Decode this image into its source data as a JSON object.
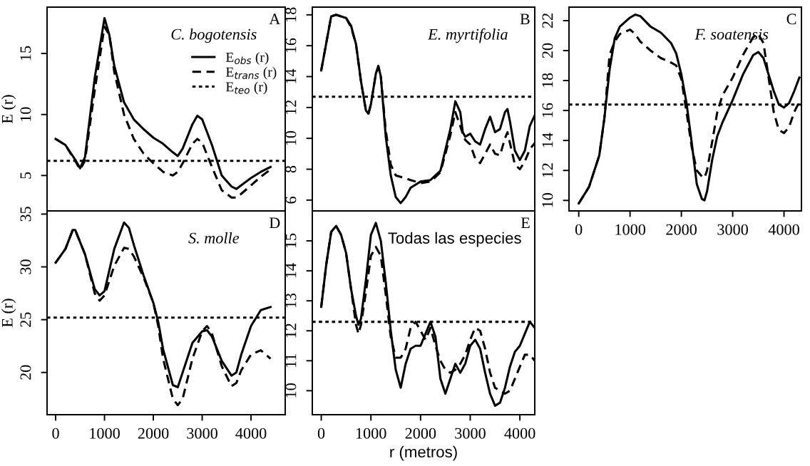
{
  "chart_data": [
    {
      "type": "line",
      "ylabel": "E (r)",
      "annotations": [
        "C. bogotensis",
        "A"
      ],
      "legend": "top right",
      "tick_labels": "y",
      "xlim": [
        -176,
        4700
      ],
      "ylim": [
        2.1,
        18.8
      ],
      "xticks": [
        0,
        1000,
        2000,
        3000,
        4000
      ],
      "yticks": [
        5,
        10,
        15
      ],
      "x": [
        0,
        200,
        400,
        500,
        600,
        800,
        1000,
        1100,
        1200,
        1400,
        1600,
        1800,
        2000,
        2200,
        2400,
        2500,
        2600,
        2800,
        2900,
        3000,
        3200,
        3400,
        3600,
        3700,
        3800,
        4000,
        4200,
        4400
      ],
      "series": [
        {
          "name": "E$_{obs}$ (r)",
          "color": "#000000",
          "line_style": "solid",
          "values": [
            8.0,
            7.5,
            6.3,
            5.6,
            6.5,
            13.0,
            17.9,
            16.5,
            14.0,
            11.0,
            9.6,
            8.8,
            8.1,
            7.6,
            6.9,
            6.6,
            7.2,
            9.2,
            9.9,
            9.6,
            7.5,
            5.0,
            4.1,
            3.9,
            4.2,
            4.8,
            5.3,
            5.7
          ]
        },
        {
          "name": "E$_{trans}$ (r)",
          "color": "#000000",
          "line_style": "dashed",
          "values": [
            8.0,
            7.5,
            6.2,
            5.5,
            6.2,
            12.0,
            17.2,
            16.5,
            13.5,
            10.0,
            8.0,
            6.8,
            6.0,
            5.3,
            5.0,
            5.3,
            6.0,
            7.6,
            8.0,
            7.7,
            5.7,
            3.8,
            3.2,
            3.2,
            3.5,
            4.2,
            4.9,
            5.5
          ]
        }
      ],
      "ref_lines": [
        {
          "axis": "y",
          "value": 6.2,
          "label": "E$_{teo}$ (r)",
          "line_style": "dotted",
          "color": "#000000"
        }
      ]
    },
    {
      "type": "line",
      "annotations": [
        "E. myrtifolia",
        "B"
      ],
      "tick_labels": "y",
      "xlim": [
        -180,
        4300
      ],
      "ylim": [
        5.3,
        18.5
      ],
      "xticks": [
        0,
        1000,
        2000,
        3000,
        4000
      ],
      "yticks": [
        6,
        8,
        10,
        12,
        14,
        16,
        18
      ],
      "x": [
        0,
        200,
        300,
        500,
        600,
        700,
        800,
        900,
        950,
        1000,
        1100,
        1150,
        1200,
        1300,
        1400,
        1500,
        1600,
        1700,
        1800,
        2000,
        2200,
        2400,
        2600,
        2700,
        2800,
        2850,
        2900,
        3000,
        3100,
        3200,
        3300,
        3400,
        3500,
        3600,
        3700,
        3750,
        3800,
        3900,
        4000,
        4100,
        4200,
        4300
      ],
      "series": [
        {
          "color": "#000000",
          "line_style": "solid",
          "values": [
            14.4,
            17.9,
            18.0,
            17.8,
            17.3,
            16.1,
            13.7,
            11.8,
            11.6,
            12.2,
            14.2,
            14.7,
            14.0,
            10.1,
            7.6,
            6.2,
            5.8,
            6.2,
            6.8,
            7.2,
            7.3,
            7.9,
            10.6,
            12.4,
            11.7,
            10.4,
            10.1,
            10.3,
            9.8,
            9.6,
            10.6,
            11.4,
            10.4,
            10.6,
            11.7,
            11.9,
            11.1,
            9.2,
            8.6,
            9.2,
            10.8,
            11.5
          ]
        },
        {
          "color": "#000000",
          "line_style": "dashed",
          "values": [
            14.4,
            17.9,
            18.0,
            17.8,
            17.2,
            16.1,
            13.7,
            11.8,
            11.6,
            12.2,
            14.2,
            14.6,
            14.0,
            10.5,
            8.3,
            7.6,
            7.5,
            7.4,
            7.3,
            7.1,
            7.2,
            7.8,
            10.2,
            11.7,
            10.8,
            10.3,
            9.9,
            9.6,
            8.7,
            8.4,
            9.0,
            9.6,
            9.0,
            8.9,
            10.0,
            10.4,
            9.7,
            8.3,
            8.0,
            8.5,
            9.3,
            9.7
          ]
        }
      ],
      "ref_lines": [
        {
          "axis": "y",
          "value": 12.7,
          "line_style": "dotted",
          "color": "#000000"
        }
      ]
    },
    {
      "type": "line",
      "annotations": [
        "F. soatensis",
        "C"
      ],
      "xlim": [
        -190,
        4340
      ],
      "ylim": [
        9.3,
        22.9
      ],
      "xticks": [
        0,
        1000,
        2000,
        3000,
        4000
      ],
      "yticks": [
        10,
        12,
        14,
        16,
        18,
        20,
        22
      ],
      "x": [
        0,
        200,
        400,
        500,
        600,
        700,
        800,
        1000,
        1100,
        1200,
        1400,
        1600,
        1800,
        1900,
        2000,
        2100,
        2200,
        2300,
        2400,
        2450,
        2500,
        2600,
        2700,
        2800,
        3000,
        3200,
        3400,
        3500,
        3600,
        3800,
        3900,
        4000,
        4100,
        4200,
        4300
      ],
      "series": [
        {
          "color": "#000000",
          "line_style": "solid",
          "values": [
            9.8,
            10.9,
            13.0,
            15.5,
            18.7,
            20.8,
            21.6,
            22.2,
            22.4,
            22.3,
            21.6,
            21.2,
            20.5,
            19.8,
            18.4,
            16.5,
            13.9,
            11.1,
            10.1,
            10.0,
            10.6,
            12.7,
            14.3,
            15.2,
            16.7,
            18.4,
            19.7,
            19.9,
            19.5,
            17.3,
            16.4,
            16.2,
            16.5,
            17.3,
            18.2
          ]
        },
        {
          "color": "#000000",
          "line_style": "dashed",
          "values": [
            9.8,
            10.9,
            13.0,
            15.5,
            19.7,
            20.6,
            21.1,
            21.4,
            21.1,
            20.6,
            20.0,
            19.5,
            19.2,
            19.0,
            18.1,
            15.9,
            13.6,
            12.0,
            11.6,
            11.5,
            12.0,
            13.9,
            15.9,
            17.0,
            18.2,
            19.7,
            20.9,
            21.1,
            20.5,
            15.9,
            14.7,
            14.5,
            14.9,
            15.9,
            16.6
          ]
        }
      ],
      "ref_lines": [
        {
          "axis": "y",
          "value": 16.4,
          "line_style": "dotted",
          "color": "#000000"
        }
      ]
    },
    {
      "type": "line",
      "ylabel": "E (r)",
      "annotations": [
        "S. molle",
        "D"
      ],
      "xlim": [
        -176,
        4700
      ],
      "ylim": [
        16.0,
        35.3
      ],
      "xticks": [
        0,
        1000,
        2000,
        3000,
        4000
      ],
      "yticks": [
        20,
        25,
        30,
        35
      ],
      "x": [
        0,
        200,
        350,
        400,
        600,
        800,
        900,
        1000,
        1200,
        1400,
        1500,
        1600,
        1800,
        2000,
        2100,
        2200,
        2400,
        2500,
        2600,
        2800,
        3000,
        3100,
        3200,
        3400,
        3600,
        3700,
        3800,
        4000,
        4200,
        4400
      ],
      "series": [
        {
          "color": "#000000",
          "line_style": "solid",
          "values": [
            30.4,
            31.7,
            33.5,
            33.5,
            31.2,
            27.9,
            27.3,
            27.7,
            31.7,
            34.2,
            33.7,
            32.1,
            29.2,
            26.6,
            24.8,
            22.2,
            18.8,
            18.6,
            20.0,
            22.8,
            23.9,
            24.0,
            23.4,
            21.1,
            19.7,
            20.0,
            21.7,
            24.4,
            25.9,
            26.2
          ]
        },
        {
          "color": "#000000",
          "line_style": "dashed",
          "values": [
            30.4,
            31.7,
            33.5,
            33.5,
            31.2,
            27.5,
            26.8,
            27.3,
            30.1,
            31.8,
            31.7,
            31.0,
            29.0,
            26.6,
            24.4,
            21.3,
            17.5,
            16.9,
            17.5,
            21.3,
            23.9,
            24.4,
            23.7,
            20.6,
            18.7,
            19.0,
            20.2,
            21.7,
            22.1,
            21.3
          ]
        }
      ],
      "ref_lines": [
        {
          "axis": "y",
          "value": 25.2,
          "line_style": "dotted",
          "color": "#000000"
        }
      ]
    },
    {
      "type": "line",
      "xlabel": "r (metros)",
      "annotations": [
        "Todas las especies",
        "E"
      ],
      "xlim": [
        -180,
        4300
      ],
      "ylim": [
        9.2,
        16.0
      ],
      "xticks": [
        0,
        1000,
        2000,
        3000,
        4000
      ],
      "yticks": [
        10,
        11,
        12,
        13,
        14,
        15
      ],
      "x": [
        0,
        100,
        200,
        300,
        400,
        500,
        600,
        700,
        750,
        800,
        900,
        1000,
        1100,
        1200,
        1300,
        1400,
        1500,
        1600,
        1700,
        1800,
        1900,
        2000,
        2100,
        2200,
        2300,
        2400,
        2500,
        2600,
        2700,
        2800,
        2900,
        3000,
        3100,
        3200,
        3300,
        3400,
        3500,
        3600,
        3700,
        3800,
        3900,
        4000,
        4100,
        4200,
        4300
      ],
      "series": [
        {
          "color": "#000000",
          "line_style": "solid",
          "values": [
            12.8,
            14.2,
            15.3,
            15.5,
            15.2,
            14.6,
            13.4,
            12.5,
            12.2,
            12.4,
            13.7,
            15.2,
            15.6,
            15.0,
            13.6,
            12.0,
            10.7,
            10.1,
            10.9,
            11.4,
            11.5,
            11.5,
            11.9,
            12.3,
            11.8,
            10.4,
            9.9,
            10.4,
            10.9,
            10.6,
            10.9,
            11.5,
            11.7,
            11.4,
            10.6,
            9.9,
            9.5,
            9.6,
            10.1,
            10.8,
            11.3,
            11.5,
            11.9,
            12.3,
            12.1
          ]
        },
        {
          "color": "#000000",
          "line_style": "dashed",
          "values": [
            12.8,
            14.2,
            15.3,
            15.5,
            15.2,
            14.6,
            13.4,
            12.2,
            11.9,
            12.2,
            13.3,
            14.5,
            14.8,
            14.5,
            13.2,
            11.8,
            11.1,
            11.1,
            11.4,
            12.1,
            12.3,
            12.0,
            11.7,
            12.1,
            11.5,
            11.0,
            10.7,
            10.6,
            10.7,
            10.9,
            11.2,
            11.7,
            12.1,
            12.0,
            11.4,
            10.6,
            10.1,
            10.0,
            9.9,
            10.0,
            10.4,
            10.8,
            11.2,
            11.2,
            11.0
          ]
        }
      ],
      "ref_lines": [
        {
          "axis": "y",
          "value": 12.3,
          "line_style": "dotted",
          "color": "#000000"
        }
      ]
    }
  ]
}
